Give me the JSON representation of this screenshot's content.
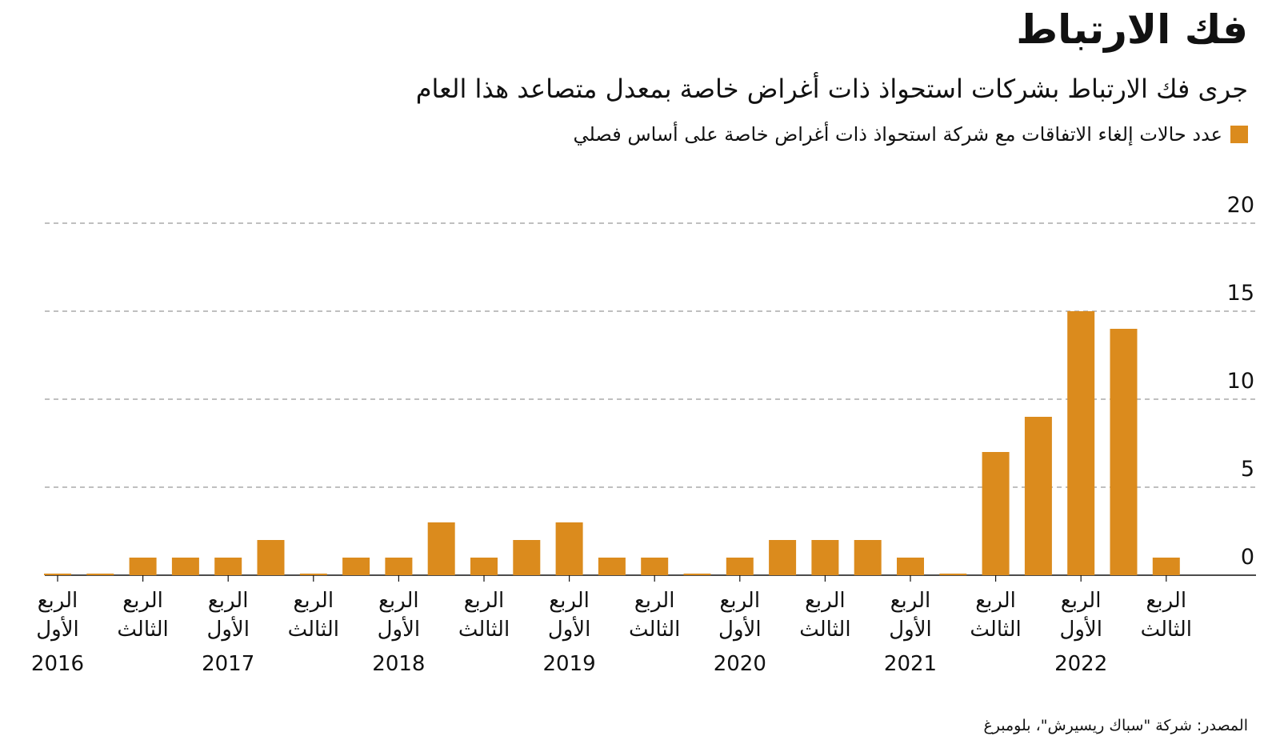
{
  "chart_data": {
    "type": "bar",
    "title": "فك الارتباط",
    "subtitle": "جرى فك الارتباط بشركات استحواذ ذات أغراض خاصة بمعدل متصاعد هذا العام",
    "categories": [
      "الربع الأول",
      null,
      "الربع الثالث",
      null,
      "الربع الأول",
      null,
      "الربع الثالث",
      null,
      "الربع الأول",
      null,
      "الربع الثالث",
      null,
      "الربع الأول",
      null,
      "الربع الثالث",
      null,
      "الربع الأول",
      null,
      "الربع الثالث",
      null,
      "الربع الأول",
      null,
      "الربع الثالث",
      null,
      "الربع الأول",
      null,
      "الربع الثالث"
    ],
    "category_groups": [
      "2016",
      null,
      null,
      null,
      "2017",
      null,
      null,
      null,
      "2018",
      null,
      null,
      null,
      "2019",
      null,
      null,
      null,
      "2020",
      null,
      null,
      null,
      "2021",
      null,
      null,
      null,
      "2022",
      null,
      null
    ],
    "series": [
      {
        "name": "عدد حالات إلغاء الاتفاقات مع شركة استحواذ ذات أغراض خاصة على أساس فصلي",
        "color": "#db8b1d",
        "values": [
          0,
          0,
          1,
          1,
          1,
          2,
          0,
          1,
          1,
          3,
          1,
          2,
          3,
          1,
          1,
          0,
          1,
          2,
          2,
          2,
          1,
          0,
          7,
          9,
          15,
          14,
          1
        ]
      }
    ],
    "ylim": [
      0,
      20
    ],
    "yticks": [
      0,
      5,
      10,
      15,
      20
    ],
    "grid": true,
    "source": "المصدر: شركة \"سباك ريسيرش\"، بلومبرغ"
  }
}
